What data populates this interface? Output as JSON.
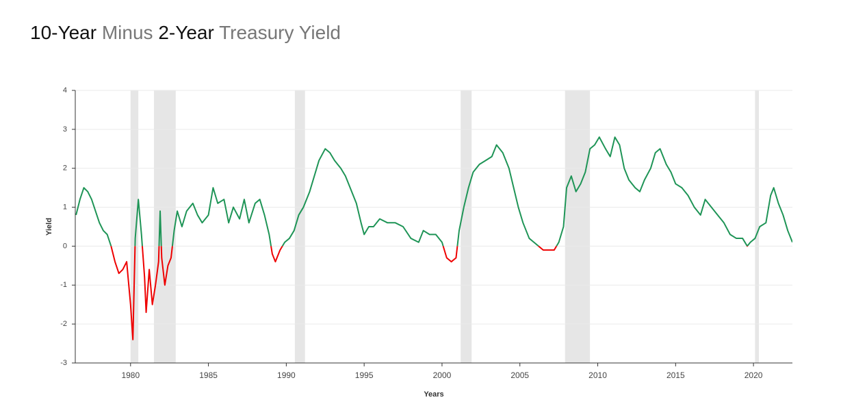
{
  "chart_data": {
    "type": "line",
    "title_parts": [
      "10-Year",
      "Minus",
      "2-Year",
      "Treasury Yield"
    ],
    "x_label": "Years",
    "y_label": "Yield",
    "xlim": [
      1976.45,
      2022.5
    ],
    "xticks": [
      1980,
      1985,
      1990,
      1995,
      2000,
      2005,
      2010,
      2015,
      2020
    ],
    "ylim": [
      -3,
      4
    ],
    "yticks": [
      -3,
      -2,
      -1,
      0,
      1,
      2,
      3,
      4
    ],
    "grid": true,
    "positive_color": "#1e9456",
    "negative_color": "#ee0000",
    "recession_color": "#e6e6e6",
    "recessions": [
      [
        1980.0,
        1980.5
      ],
      [
        1981.5,
        1982.9
      ],
      [
        1990.55,
        1991.2
      ],
      [
        2001.2,
        2001.9
      ],
      [
        2007.9,
        2009.5
      ],
      [
        2020.1,
        2020.35
      ]
    ],
    "x": [
      1976.5,
      1976.75,
      1977.0,
      1977.25,
      1977.5,
      1977.75,
      1978.0,
      1978.25,
      1978.5,
      1978.75,
      1979.0,
      1979.25,
      1979.5,
      1979.75,
      1980.0,
      1980.15,
      1980.3,
      1980.5,
      1980.7,
      1980.9,
      1981.0,
      1981.2,
      1981.4,
      1981.6,
      1981.8,
      1981.9,
      1982.0,
      1982.2,
      1982.4,
      1982.6,
      1982.8,
      1983.0,
      1983.3,
      1983.6,
      1984.0,
      1984.3,
      1984.6,
      1985.0,
      1985.3,
      1985.6,
      1986.0,
      1986.3,
      1986.6,
      1987.0,
      1987.3,
      1987.6,
      1988.0,
      1988.3,
      1988.6,
      1988.9,
      1989.1,
      1989.3,
      1989.6,
      1989.9,
      1990.2,
      1990.5,
      1990.8,
      1991.1,
      1991.5,
      1991.8,
      1992.1,
      1992.5,
      1992.8,
      1993.1,
      1993.5,
      1993.8,
      1994.1,
      1994.5,
      1994.8,
      1995.0,
      1995.3,
      1995.6,
      1996.0,
      1996.5,
      1997.0,
      1997.5,
      1998.0,
      1998.5,
      1998.8,
      1999.2,
      1999.6,
      2000.0,
      2000.3,
      2000.6,
      2000.9,
      2001.1,
      2001.4,
      2001.7,
      2002.0,
      2002.4,
      2002.8,
      2003.2,
      2003.5,
      2003.9,
      2004.3,
      2004.6,
      2004.9,
      2005.2,
      2005.6,
      2005.9,
      2006.2,
      2006.5,
      2006.8,
      2007.2,
      2007.5,
      2007.8,
      2008.0,
      2008.3,
      2008.6,
      2008.9,
      2009.2,
      2009.5,
      2009.8,
      2010.1,
      2010.5,
      2010.8,
      2011.1,
      2011.4,
      2011.7,
      2012.0,
      2012.4,
      2012.7,
      2013.0,
      2013.4,
      2013.7,
      2014.0,
      2014.4,
      2014.7,
      2015.0,
      2015.4,
      2015.8,
      2016.2,
      2016.6,
      2016.9,
      2017.3,
      2017.7,
      2018.1,
      2018.5,
      2018.9,
      2019.3,
      2019.6,
      2019.8,
      2020.1,
      2020.4,
      2020.8,
      2021.1,
      2021.3,
      2021.6,
      2021.9,
      2022.2,
      2022.5
    ],
    "values": [
      0.8,
      1.2,
      1.5,
      1.4,
      1.2,
      0.9,
      0.6,
      0.4,
      0.3,
      0.0,
      -0.4,
      -0.7,
      -0.6,
      -0.4,
      -1.5,
      -2.4,
      0.2,
      1.2,
      0.3,
      -0.8,
      -1.7,
      -0.6,
      -1.5,
      -1.0,
      -0.4,
      0.9,
      -0.3,
      -1.0,
      -0.5,
      -0.3,
      0.4,
      0.9,
      0.5,
      0.9,
      1.1,
      0.8,
      0.6,
      0.8,
      1.5,
      1.1,
      1.2,
      0.6,
      1.0,
      0.7,
      1.2,
      0.6,
      1.1,
      1.2,
      0.8,
      0.3,
      -0.2,
      -0.4,
      -0.1,
      0.1,
      0.2,
      0.4,
      0.8,
      1.0,
      1.4,
      1.8,
      2.2,
      2.5,
      2.4,
      2.2,
      2.0,
      1.8,
      1.5,
      1.1,
      0.6,
      0.3,
      0.5,
      0.5,
      0.7,
      0.6,
      0.6,
      0.5,
      0.2,
      0.1,
      0.4,
      0.3,
      0.3,
      0.1,
      -0.3,
      -0.4,
      -0.3,
      0.4,
      1.0,
      1.5,
      1.9,
      2.1,
      2.2,
      2.3,
      2.6,
      2.4,
      2.0,
      1.5,
      1.0,
      0.6,
      0.2,
      0.1,
      0.0,
      -0.1,
      -0.1,
      -0.1,
      0.1,
      0.5,
      1.5,
      1.8,
      1.4,
      1.6,
      1.9,
      2.5,
      2.6,
      2.8,
      2.5,
      2.3,
      2.8,
      2.6,
      2.0,
      1.7,
      1.5,
      1.4,
      1.7,
      2.0,
      2.4,
      2.5,
      2.1,
      1.9,
      1.6,
      1.5,
      1.3,
      1.0,
      0.8,
      1.2,
      1.0,
      0.8,
      0.6,
      0.3,
      0.2,
      0.2,
      0.0,
      0.1,
      0.2,
      0.5,
      0.6,
      1.3,
      1.5,
      1.1,
      0.8,
      0.4,
      0.1
    ]
  }
}
